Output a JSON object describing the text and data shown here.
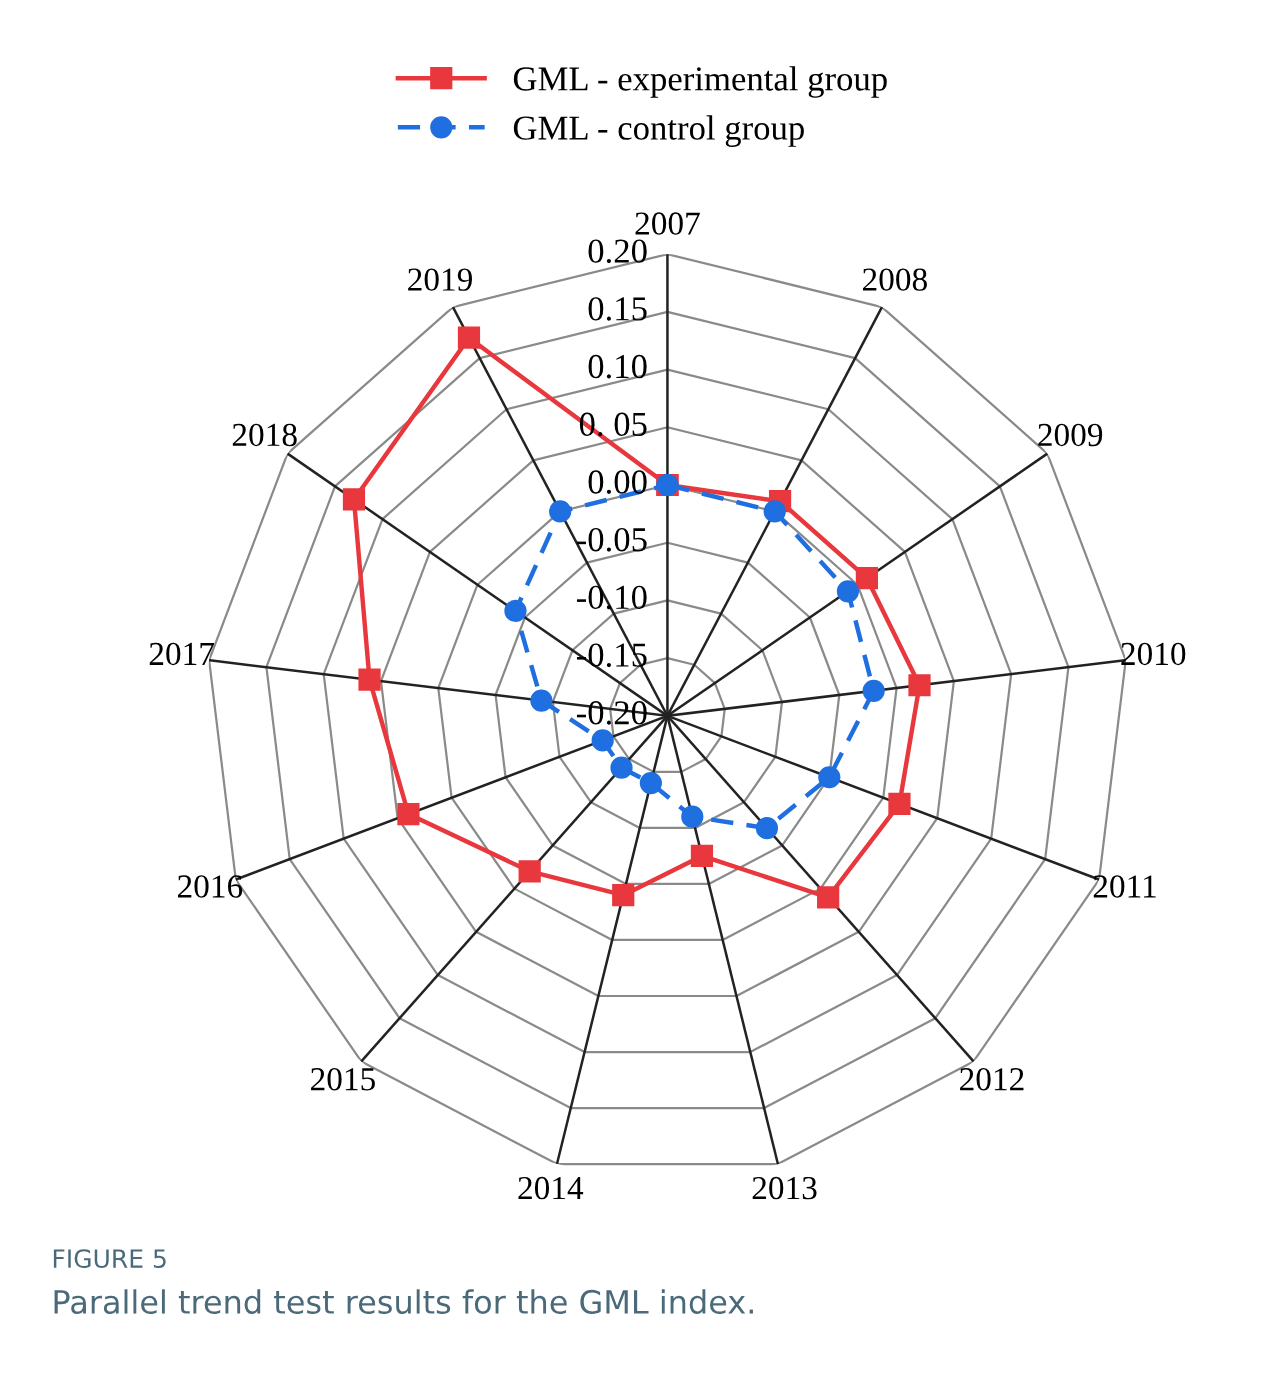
{
  "chart_data": {
    "type": "radar",
    "categories": [
      "2007",
      "2008",
      "2009",
      "2010",
      "2011",
      "2012",
      "2013",
      "2014",
      "2015",
      "2016",
      "2017",
      "2018",
      "2019"
    ],
    "series": [
      {
        "name": "GML - experimental group",
        "color": "#e8383d",
        "marker": "square",
        "line_style": "solid",
        "values": [
          0.0,
          0.01,
          0.01,
          0.02,
          0.015,
          0.01,
          -0.075,
          -0.04,
          -0.02,
          0.04,
          0.06,
          0.13,
          0.17
        ]
      },
      {
        "name": "GML - control group",
        "color": "#1f6fe0",
        "marker": "circle",
        "line_style": "dashed",
        "values": [
          0.0,
          0.0,
          -0.01,
          -0.02,
          -0.05,
          -0.07,
          -0.11,
          -0.14,
          -0.14,
          -0.14,
          -0.09,
          -0.04,
          0.0
        ]
      }
    ],
    "ylim": [
      -0.2,
      0.2
    ],
    "yticks": [
      {
        "value": -0.2,
        "label": "-0.20"
      },
      {
        "value": -0.15,
        "label": "-0.15"
      },
      {
        "value": -0.1,
        "label": "-0.10"
      },
      {
        "value": -0.05,
        "label": "-0.05"
      },
      {
        "value": 0.0,
        "label": "0.00"
      },
      {
        "value": 0.05,
        "label": "0. 05"
      },
      {
        "value": 0.1,
        "label": "0.10"
      },
      {
        "value": 0.15,
        "label": "0.15"
      },
      {
        "value": 0.2,
        "label": "0.20"
      }
    ],
    "grid": true,
    "legend": "top",
    "annotations": [
      "FIGURE 5",
      "Parallel trend test results for the GML index."
    ]
  }
}
